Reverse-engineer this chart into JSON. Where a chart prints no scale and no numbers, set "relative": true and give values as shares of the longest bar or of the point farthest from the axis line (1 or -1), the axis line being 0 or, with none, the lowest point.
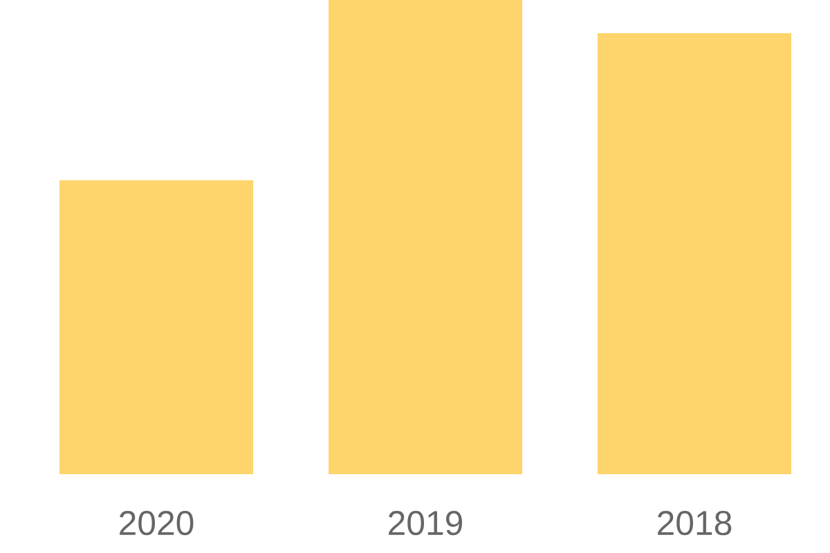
{
  "chart_data": {
    "type": "bar",
    "categories": [
      "2020",
      "2019",
      "2018"
    ],
    "values": [
      0.62,
      1,
      0.93
    ],
    "color": "#fed46c",
    "relative": true
  }
}
